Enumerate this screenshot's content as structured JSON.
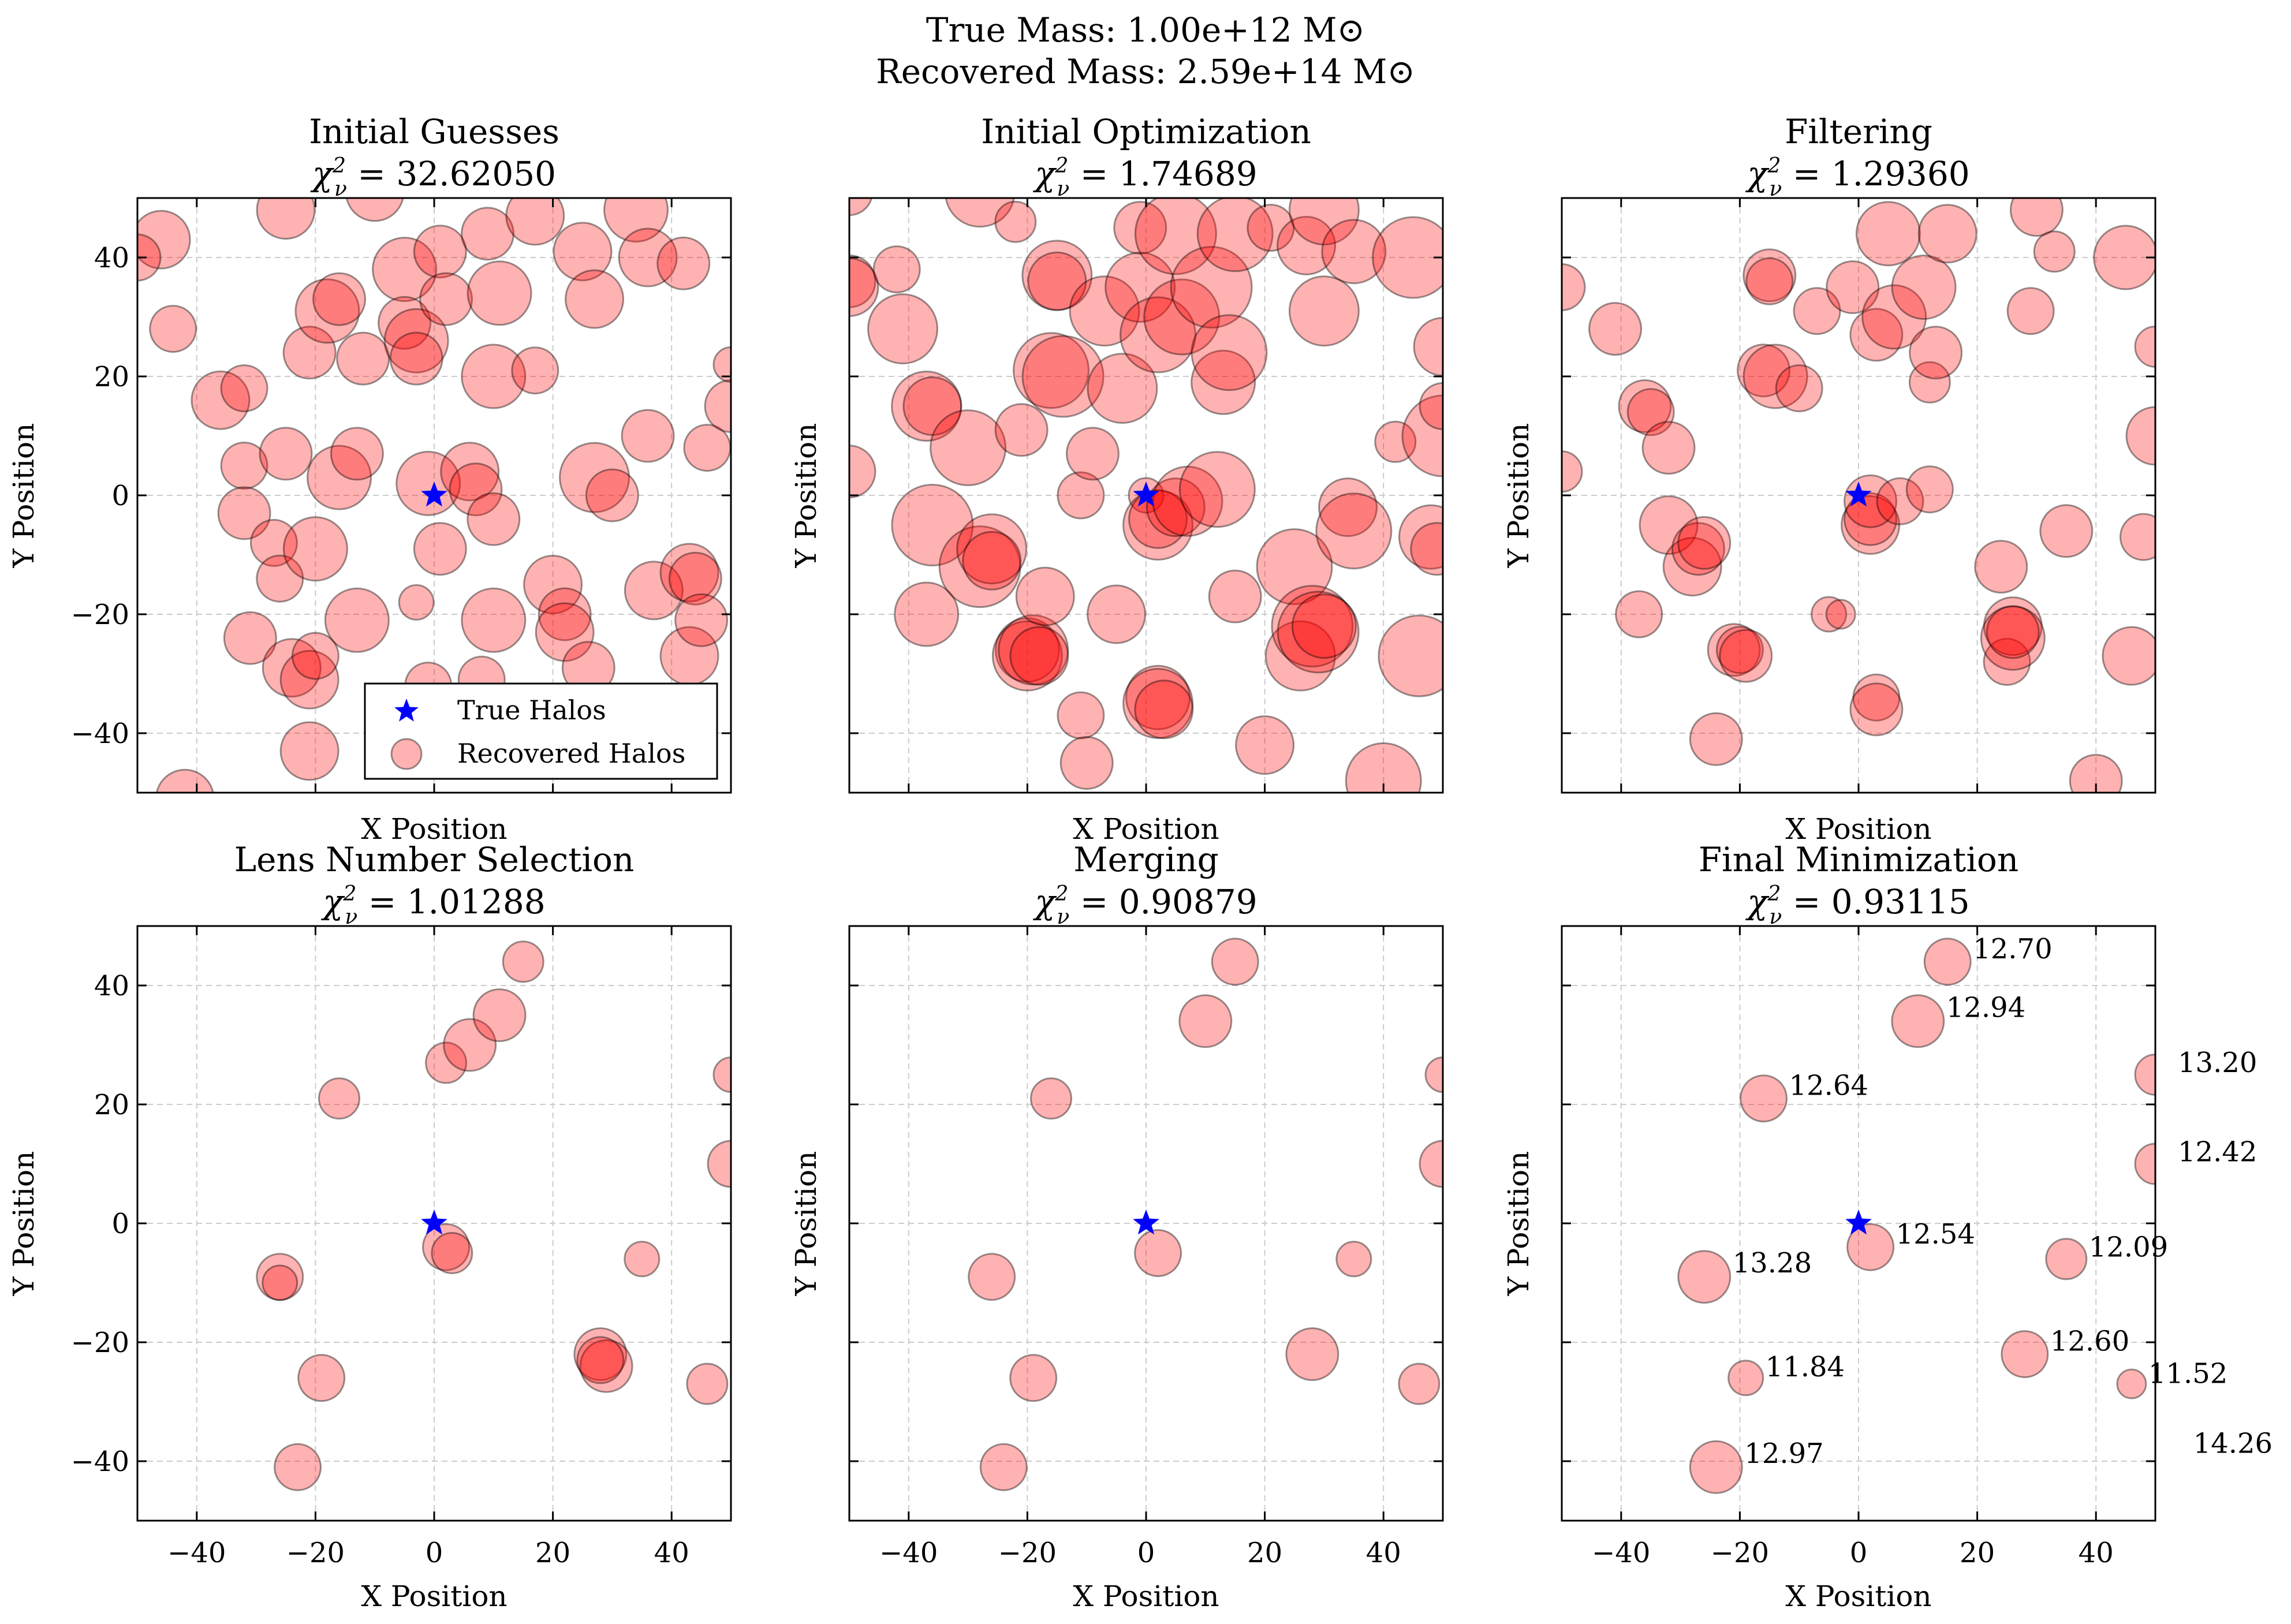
{
  "figure": {
    "suptitle_line1": "True Mass: 1.00e+12 M⊙",
    "suptitle_line2": "Recovered Mass: 2.59e+14 M⊙"
  },
  "colors": {
    "true_halo": "#0000ff",
    "recovered_fill": "#ff0000",
    "recovered_alpha": 0.3,
    "edge": "#000000",
    "grid": "#cccccc"
  },
  "chart_data": [
    {
      "type": "scatter",
      "title": "Initial Guesses",
      "chi2_label": "χ²ν = 32.62050",
      "xlabel": "X Position",
      "ylabel": "Y Position",
      "xlim": [
        -50,
        50
      ],
      "ylim": [
        -50,
        50
      ],
      "xticks": [
        -40,
        -20,
        0,
        20,
        40
      ],
      "yticks": [
        -40,
        -20,
        0,
        20,
        40
      ],
      "xticklabels_shown": false,
      "yticklabels_shown": true,
      "grid": true,
      "legend": {
        "position": "lower-right",
        "entries": [
          "True Halos",
          "Recovered Halos"
        ]
      },
      "true_halos": [
        [
          0,
          0
        ]
      ],
      "halos": [
        [
          -46,
          43,
          5
        ],
        [
          -44,
          28,
          4
        ],
        [
          -50,
          40,
          4
        ],
        [
          -42,
          -51,
          5
        ],
        [
          -36,
          16,
          5
        ],
        [
          -32,
          18,
          4
        ],
        [
          -32,
          5,
          4
        ],
        [
          -32,
          -3,
          4.5
        ],
        [
          -31,
          -24,
          4.5
        ],
        [
          -27,
          -8,
          4
        ],
        [
          -26,
          -14,
          4
        ],
        [
          -25,
          7,
          4.5
        ],
        [
          -25,
          48,
          5
        ],
        [
          -24,
          -29,
          5
        ],
        [
          -21,
          -31,
          5
        ],
        [
          -21,
          -43,
          5
        ],
        [
          -21,
          24,
          4.5
        ],
        [
          -20,
          -9,
          5.5
        ],
        [
          -20,
          -27,
          4
        ],
        [
          -18,
          31,
          5.5
        ],
        [
          -16,
          33,
          4.5
        ],
        [
          -16,
          3,
          5.5
        ],
        [
          -13,
          7,
          4.5
        ],
        [
          -12,
          23,
          4.5
        ],
        [
          -13,
          -21,
          5.5
        ],
        [
          -10,
          51,
          5
        ],
        [
          -5,
          38,
          5.5
        ],
        [
          -5,
          29,
          4.5
        ],
        [
          -3,
          26,
          5.5
        ],
        [
          -3,
          23,
          4.5
        ],
        [
          -3,
          -18,
          3
        ],
        [
          -1,
          -32,
          4
        ],
        [
          -1,
          2,
          5.5
        ],
        [
          1,
          41,
          4.5
        ],
        [
          2,
          33,
          4.5
        ],
        [
          1,
          -9,
          4.5
        ],
        [
          6,
          4,
          5
        ],
        [
          7,
          1,
          4.5
        ],
        [
          9,
          44,
          4.5
        ],
        [
          10,
          -4,
          4.5
        ],
        [
          10,
          20,
          5.5
        ],
        [
          10,
          -21,
          5.5
        ],
        [
          11,
          34,
          5.5
        ],
        [
          17,
          21,
          4
        ],
        [
          17,
          47,
          5
        ],
        [
          20,
          -15,
          5
        ],
        [
          22,
          -20,
          4.5
        ],
        [
          22,
          -23,
          5
        ],
        [
          25,
          41,
          5
        ],
        [
          26,
          -29,
          4.5
        ],
        [
          27,
          3,
          6
        ],
        [
          27,
          33,
          5
        ],
        [
          30,
          0,
          4.5
        ],
        [
          34,
          48,
          5.5
        ],
        [
          36,
          40,
          5
        ],
        [
          36,
          10,
          4.5
        ],
        [
          37,
          -16,
          5
        ],
        [
          42,
          39,
          4.5
        ],
        [
          43,
          -27,
          5
        ],
        [
          43,
          -13,
          5
        ],
        [
          44,
          -14,
          4.5
        ],
        [
          45,
          -21,
          4.5
        ],
        [
          46,
          8,
          4
        ],
        [
          50,
          15,
          4.5
        ],
        [
          50,
          22,
          3
        ],
        [
          8,
          -31,
          4
        ]
      ]
    },
    {
      "type": "scatter",
      "title": "Initial Optimization",
      "chi2_label": "χ²ν = 1.74689",
      "xlabel": "X Position",
      "ylabel": "Y Position",
      "xlim": [
        -50,
        50
      ],
      "ylim": [
        -50,
        50
      ],
      "xticks": [
        -40,
        -20,
        0,
        20,
        40
      ],
      "yticks": [
        -40,
        -20,
        0,
        20,
        40
      ],
      "xticklabels_shown": false,
      "yticklabels_shown": false,
      "grid": true,
      "true_halos": [
        [
          0,
          0
        ]
      ],
      "halos": [
        [
          -50,
          51,
          4
        ],
        [
          -50,
          36,
          4.5
        ],
        [
          -50,
          35,
          5
        ],
        [
          -50,
          4,
          4.5
        ],
        [
          -42,
          38,
          4
        ],
        [
          -41,
          28,
          6
        ],
        [
          -37,
          15,
          6
        ],
        [
          -36,
          15,
          5
        ],
        [
          -36,
          -5,
          7
        ],
        [
          -37,
          -20,
          5.5
        ],
        [
          -30,
          8,
          6.5
        ],
        [
          -28,
          51,
          6
        ],
        [
          -28,
          -12,
          7
        ],
        [
          -26,
          -9,
          6
        ],
        [
          -26,
          -11,
          5
        ],
        [
          -22,
          46,
          3.5
        ],
        [
          -21,
          11,
          4.5
        ],
        [
          -20,
          -26,
          5.5
        ],
        [
          -20,
          -27,
          6
        ],
        [
          -19,
          -26,
          6
        ],
        [
          -18,
          -27,
          5
        ],
        [
          -16,
          21,
          6.5
        ],
        [
          -15,
          37,
          6
        ],
        [
          -15,
          36,
          5
        ],
        [
          -14,
          20,
          7
        ],
        [
          -17,
          -17,
          5
        ],
        [
          -11,
          -37,
          4
        ],
        [
          -10,
          -45,
          4.5
        ],
        [
          -11,
          0,
          4
        ],
        [
          -9,
          7,
          4.5
        ],
        [
          -7,
          31,
          6
        ],
        [
          -5,
          -20,
          5
        ],
        [
          -4,
          18,
          6
        ],
        [
          -1,
          45,
          4.5
        ],
        [
          -1,
          35,
          6
        ],
        [
          0,
          0,
          3
        ],
        [
          2,
          -5,
          6
        ],
        [
          2,
          -4,
          5
        ],
        [
          2,
          27,
          6.5
        ],
        [
          2,
          -34,
          5.5
        ],
        [
          2,
          -35,
          6
        ],
        [
          3,
          -36,
          5
        ],
        [
          5,
          44,
          7
        ],
        [
          5,
          -2,
          5
        ],
        [
          6,
          30,
          6.5
        ],
        [
          7,
          -1,
          6
        ],
        [
          11,
          35,
          7
        ],
        [
          12,
          1,
          6.5
        ],
        [
          13,
          19,
          5.5
        ],
        [
          14,
          24,
          6.5
        ],
        [
          15,
          -17,
          4.5
        ],
        [
          15,
          44,
          6.5
        ],
        [
          21,
          45,
          4
        ],
        [
          20,
          -42,
          5
        ],
        [
          25,
          -12,
          6.5
        ],
        [
          26,
          -27,
          6
        ],
        [
          27,
          42,
          5
        ],
        [
          28,
          -22,
          7
        ],
        [
          29,
          -23,
          7
        ],
        [
          30,
          -22,
          5.5
        ],
        [
          30,
          48,
          6
        ],
        [
          30,
          31,
          6
        ],
        [
          34,
          -2,
          5
        ],
        [
          35,
          41,
          5.5
        ],
        [
          35,
          -6,
          6.5
        ],
        [
          40,
          -48,
          6.5
        ],
        [
          42,
          9,
          3.5
        ],
        [
          45,
          40,
          7
        ],
        [
          46,
          -27,
          7
        ],
        [
          48,
          -7,
          5.5
        ],
        [
          49,
          -9,
          4.5
        ],
        [
          50,
          10,
          7
        ],
        [
          50,
          25,
          5
        ],
        [
          50,
          15,
          4
        ]
      ]
    },
    {
      "type": "scatter",
      "title": "Filtering",
      "chi2_label": "χ²ν = 1.29360",
      "xlabel": "X Position",
      "ylabel": "Y Position",
      "xlim": [
        -50,
        50
      ],
      "ylim": [
        -50,
        50
      ],
      "xticks": [
        -40,
        -20,
        0,
        20,
        40
      ],
      "yticks": [
        -40,
        -20,
        0,
        20,
        40
      ],
      "xticklabels_shown": false,
      "yticklabels_shown": false,
      "grid": true,
      "true_halos": [
        [
          0,
          0
        ]
      ],
      "halos": [
        [
          -50,
          35,
          4
        ],
        [
          -50,
          4,
          3.5
        ],
        [
          -41,
          28,
          4.5
        ],
        [
          -37,
          -20,
          4
        ],
        [
          -36,
          15,
          4.5
        ],
        [
          -35,
          14,
          4
        ],
        [
          -32,
          -5,
          5
        ],
        [
          -32,
          8,
          4.5
        ],
        [
          -28,
          -12,
          5
        ],
        [
          -27,
          -9,
          4.5
        ],
        [
          -26,
          -8,
          4.5
        ],
        [
          -24,
          -41,
          4.5
        ],
        [
          -21,
          -26,
          4.5
        ],
        [
          -20,
          -26,
          4
        ],
        [
          -19,
          -27,
          4.5
        ],
        [
          -16,
          21,
          4.5
        ],
        [
          -15,
          37,
          4.5
        ],
        [
          -15,
          36,
          4
        ],
        [
          -14,
          20,
          5.5
        ],
        [
          -10,
          18,
          4
        ],
        [
          -7,
          31,
          4
        ],
        [
          -5,
          -20,
          3
        ],
        [
          -1,
          35,
          4.5
        ],
        [
          -3,
          -20,
          2.5
        ],
        [
          2,
          -5,
          5
        ],
        [
          2,
          -4,
          4.5
        ],
        [
          2,
          -1,
          4.5
        ],
        [
          3,
          -34,
          4
        ],
        [
          3,
          -36,
          4.5
        ],
        [
          3,
          27,
          4.5
        ],
        [
          5,
          44,
          5.5
        ],
        [
          6,
          30,
          5.5
        ],
        [
          7,
          -1,
          4
        ],
        [
          11,
          35,
          5.5
        ],
        [
          12,
          19,
          3.5
        ],
        [
          12,
          1,
          4
        ],
        [
          13,
          24,
          4.5
        ],
        [
          15,
          44,
          5
        ],
        [
          24,
          -12,
          4.5
        ],
        [
          25,
          -28,
          4
        ],
        [
          26,
          -22,
          5
        ],
        [
          26,
          -24,
          5.5
        ],
        [
          26,
          -23,
          4.5
        ],
        [
          29,
          31,
          4
        ],
        [
          30,
          48,
          4.5
        ],
        [
          33,
          41,
          3.5
        ],
        [
          35,
          -6,
          4.5
        ],
        [
          40,
          -48,
          4.5
        ],
        [
          45,
          40,
          5.5
        ],
        [
          46,
          -27,
          5
        ],
        [
          48,
          -7,
          4
        ],
        [
          50,
          25,
          3.5
        ],
        [
          50,
          10,
          5
        ]
      ]
    },
    {
      "type": "scatter",
      "title": "Lens Number Selection",
      "chi2_label": "χ²ν = 1.01288",
      "xlabel": "X Position",
      "ylabel": "Y Position",
      "xlim": [
        -50,
        50
      ],
      "ylim": [
        -50,
        50
      ],
      "xticks": [
        -40,
        -20,
        0,
        20,
        40
      ],
      "yticks": [
        -40,
        -20,
        0,
        20,
        40
      ],
      "xticklabels_shown": true,
      "yticklabels_shown": true,
      "grid": true,
      "true_halos": [
        [
          0,
          0
        ]
      ],
      "halos": [
        [
          -26,
          -9,
          4
        ],
        [
          -26,
          -10,
          3
        ],
        [
          -19,
          -26,
          4
        ],
        [
          -23,
          -41,
          4
        ],
        [
          -16,
          21,
          3.5
        ],
        [
          2,
          27,
          3.5
        ],
        [
          2,
          -4,
          4
        ],
        [
          3,
          -5,
          3.5
        ],
        [
          6,
          30,
          4.5
        ],
        [
          11,
          35,
          4.5
        ],
        [
          15,
          44,
          3.5
        ],
        [
          28,
          -22,
          4.5
        ],
        [
          29,
          -24,
          4.5
        ],
        [
          28,
          -23,
          4
        ],
        [
          35,
          -6,
          3
        ],
        [
          46,
          -27,
          3.5
        ],
        [
          50,
          10,
          4
        ],
        [
          50,
          25,
          3
        ]
      ]
    },
    {
      "type": "scatter",
      "title": "Merging",
      "chi2_label": "χ²ν = 0.90879",
      "xlabel": "X Position",
      "ylabel": "Y Position",
      "xlim": [
        -50,
        50
      ],
      "ylim": [
        -50,
        50
      ],
      "xticks": [
        -40,
        -20,
        0,
        20,
        40
      ],
      "yticks": [
        -40,
        -20,
        0,
        20,
        40
      ],
      "xticklabels_shown": true,
      "yticklabels_shown": false,
      "grid": true,
      "true_halos": [
        [
          0,
          0
        ]
      ],
      "halos": [
        [
          -26,
          -9,
          4
        ],
        [
          -19,
          -26,
          4
        ],
        [
          -24,
          -41,
          4
        ],
        [
          -16,
          21,
          3.5
        ],
        [
          2,
          -5,
          4
        ],
        [
          10,
          34,
          4.5
        ],
        [
          15,
          44,
          4
        ],
        [
          28,
          -22,
          4.5
        ],
        [
          35,
          -6,
          3
        ],
        [
          46,
          -27,
          3.5
        ],
        [
          50,
          10,
          4
        ],
        [
          50,
          25,
          3
        ]
      ]
    },
    {
      "type": "scatter",
      "title": "Final Minimization",
      "chi2_label": "χ²ν = 0.93115",
      "xlabel": "X Position",
      "ylabel": "Y Position",
      "xlim": [
        -50,
        50
      ],
      "ylim": [
        -50,
        50
      ],
      "xticks": [
        -40,
        -20,
        0,
        20,
        40
      ],
      "yticks": [
        -40,
        -20,
        0,
        20,
        40
      ],
      "xticklabels_shown": true,
      "yticklabels_shown": false,
      "grid": true,
      "true_halos": [
        [
          0,
          0
        ]
      ],
      "halos": [
        [
          15,
          44,
          4,
          "12.70"
        ],
        [
          10,
          34,
          4.5,
          "12.94"
        ],
        [
          -16,
          21,
          4,
          "12.64"
        ],
        [
          50,
          25,
          3.5,
          "13.20"
        ],
        [
          50,
          10,
          3.5,
          "12.42"
        ],
        [
          2,
          -4,
          4,
          "12.54"
        ],
        [
          35,
          -6,
          3.5,
          "12.09"
        ],
        [
          -26,
          -9,
          4.5,
          "13.28"
        ],
        [
          28,
          -22,
          4,
          "12.60"
        ],
        [
          -19,
          -26,
          3,
          "11.84"
        ],
        [
          46,
          -27,
          2.5,
          "11.52"
        ],
        [
          -24,
          -41,
          4.5,
          "12.97"
        ],
        [
          56,
          -38,
          0,
          "14.26"
        ]
      ]
    }
  ]
}
